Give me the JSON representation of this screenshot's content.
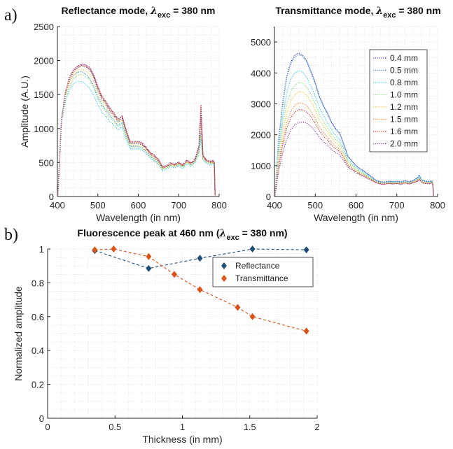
{
  "figure_labels": {
    "panel_a": "a)",
    "panel_b": "b)"
  },
  "chart_data": [
    {
      "type": "line",
      "title": {
        "prefix": "Reflectance mode, ",
        "lambda": "λ",
        "sub": "exc",
        "suffix": " = 380 nm"
      },
      "xlabel": "Wavelength (in nm)",
      "ylabel": "Amplitude (A.U.)",
      "xlim": [
        400,
        800
      ],
      "ylim": [
        0,
        2500
      ],
      "xticks": [
        400,
        500,
        600,
        700,
        800
      ],
      "yticks": [
        0,
        500,
        1000,
        1500,
        2000,
        2500
      ],
      "grid": true,
      "line_style": "dotted",
      "x": [
        401,
        410,
        420,
        430,
        440,
        450,
        460,
        470,
        480,
        490,
        500,
        510,
        520,
        530,
        540,
        550,
        560,
        570,
        580,
        590,
        600,
        610,
        620,
        630,
        640,
        650,
        660,
        670,
        680,
        690,
        700,
        710,
        720,
        730,
        740,
        750,
        755,
        760,
        765,
        770,
        780,
        785,
        788,
        790
      ],
      "series": [
        {
          "name": "0.4 mm",
          "color": "#3f3fb0",
          "values": [
            0,
            1140,
            1530,
            1740,
            1850,
            1900,
            1930,
            1910,
            1870,
            1750,
            1570,
            1440,
            1360,
            1260,
            1190,
            1100,
            1150,
            950,
            780,
            780,
            780,
            760,
            700,
            620,
            580,
            520,
            420,
            440,
            480,
            460,
            490,
            450,
            520,
            480,
            530,
            730,
            1310,
            600,
            550,
            520,
            500,
            520,
            480,
            20
          ]
        },
        {
          "name": "0.5 mm",
          "color": "#3a8fe0",
          "values": [
            0,
            1130,
            1500,
            1690,
            1780,
            1830,
            1840,
            1800,
            1740,
            1620,
            1470,
            1350,
            1280,
            1190,
            1130,
            1050,
            1090,
            900,
            740,
            740,
            740,
            720,
            660,
            590,
            550,
            500,
            400,
            420,
            460,
            440,
            470,
            430,
            500,
            460,
            510,
            670,
            950,
            570,
            530,
            500,
            480,
            500,
            460,
            20
          ]
        },
        {
          "name": "0.8 mm",
          "color": "#36c8f0",
          "values": [
            0,
            1060,
            1400,
            1570,
            1660,
            1690,
            1690,
            1650,
            1590,
            1480,
            1350,
            1240,
            1180,
            1100,
            1050,
            980,
            1020,
            840,
            700,
            700,
            700,
            680,
            630,
            560,
            520,
            470,
            380,
            400,
            440,
            420,
            450,
            410,
            480,
            440,
            490,
            630,
            850,
            540,
            500,
            480,
            460,
            480,
            440,
            20
          ]
        },
        {
          "name": "1.0 mm",
          "color": "#7ee07e",
          "values": [
            0,
            1090,
            1450,
            1630,
            1730,
            1780,
            1800,
            1770,
            1710,
            1590,
            1440,
            1320,
            1250,
            1160,
            1100,
            1030,
            1070,
            880,
            730,
            730,
            720,
            700,
            650,
            580,
            540,
            490,
            400,
            420,
            460,
            440,
            470,
            430,
            500,
            460,
            510,
            650,
            900,
            560,
            520,
            500,
            480,
            500,
            460,
            20
          ]
        },
        {
          "name": "1.2 mm",
          "color": "#ecc832",
          "values": [
            0,
            1110,
            1480,
            1680,
            1790,
            1850,
            1870,
            1850,
            1800,
            1690,
            1530,
            1400,
            1330,
            1230,
            1170,
            1090,
            1130,
            930,
            760,
            760,
            760,
            740,
            680,
            610,
            570,
            510,
            410,
            430,
            470,
            450,
            480,
            440,
            510,
            470,
            520,
            690,
            1050,
            580,
            540,
            510,
            490,
            510,
            470,
            20
          ]
        },
        {
          "name": "1.5 mm",
          "color": "#f08c32",
          "values": [
            0,
            1130,
            1510,
            1710,
            1830,
            1890,
            1920,
            1910,
            1870,
            1760,
            1590,
            1450,
            1380,
            1280,
            1210,
            1120,
            1170,
            960,
            790,
            790,
            790,
            770,
            700,
            630,
            590,
            530,
            420,
            440,
            480,
            460,
            490,
            450,
            520,
            480,
            530,
            710,
            1180,
            590,
            550,
            520,
            500,
            520,
            480,
            20
          ]
        },
        {
          "name": "1.6 mm",
          "color": "#d23232",
          "values": [
            0,
            1140,
            1530,
            1740,
            1860,
            1910,
            1940,
            1930,
            1890,
            1780,
            1610,
            1470,
            1390,
            1290,
            1220,
            1130,
            1180,
            970,
            800,
            800,
            800,
            780,
            710,
            640,
            600,
            540,
            430,
            450,
            490,
            470,
            500,
            460,
            530,
            490,
            540,
            730,
            1350,
            600,
            560,
            530,
            510,
            530,
            490,
            20
          ]
        },
        {
          "name": "2.0 mm",
          "color": "#8c3c96",
          "values": [
            0,
            1150,
            1540,
            1760,
            1870,
            1920,
            1950,
            1940,
            1900,
            1790,
            1620,
            1480,
            1400,
            1300,
            1230,
            1140,
            1190,
            980,
            810,
            810,
            810,
            790,
            720,
            650,
            610,
            550,
            440,
            460,
            500,
            480,
            510,
            470,
            540,
            500,
            550,
            750,
            1200,
            610,
            570,
            540,
            520,
            540,
            500,
            20
          ]
        }
      ]
    },
    {
      "type": "line",
      "title": {
        "prefix": "Transmittance mode, ",
        "lambda": "λ",
        "sub": "exc",
        "suffix": " = 380 nm"
      },
      "xlabel": "Wavelength (in nm)",
      "ylabel": "",
      "xlim": [
        400,
        800
      ],
      "ylim": [
        0,
        5500
      ],
      "xticks": [
        400,
        500,
        600,
        700,
        800
      ],
      "yticks": [
        0,
        1000,
        2000,
        3000,
        4000,
        5000
      ],
      "grid": true,
      "line_style": "dotted",
      "legend_position": "top-right",
      "x": [
        401,
        410,
        420,
        430,
        440,
        450,
        460,
        470,
        480,
        490,
        500,
        510,
        520,
        530,
        540,
        550,
        560,
        570,
        580,
        590,
        600,
        610,
        620,
        630,
        640,
        650,
        660,
        670,
        680,
        690,
        700,
        710,
        720,
        730,
        740,
        750,
        755,
        760,
        765,
        770,
        780,
        785,
        788,
        790
      ],
      "series": [
        {
          "name": "0.4 mm",
          "color": "#3f3fb0",
          "values": [
            0,
            1800,
            3000,
            3900,
            4350,
            4580,
            4650,
            4560,
            4370,
            4040,
            3680,
            3250,
            2950,
            2700,
            2400,
            2200,
            2050,
            1700,
            1300,
            1150,
            1000,
            900,
            820,
            720,
            620,
            520,
            480,
            470,
            500,
            480,
            500,
            470,
            520,
            480,
            520,
            600,
            700,
            560,
            520,
            500,
            490,
            510,
            480,
            20
          ]
        },
        {
          "name": "0.5 mm",
          "color": "#3a8fe0",
          "values": [
            0,
            1750,
            2950,
            3850,
            4300,
            4520,
            4600,
            4520,
            4330,
            4000,
            3650,
            3220,
            2920,
            2680,
            2380,
            2180,
            2030,
            1680,
            1290,
            1140,
            990,
            890,
            810,
            710,
            610,
            510,
            470,
            460,
            490,
            470,
            490,
            460,
            510,
            470,
            510,
            590,
            680,
            550,
            510,
            490,
            480,
            500,
            470,
            20
          ]
        },
        {
          "name": "0.8 mm",
          "color": "#36c8f0",
          "values": [
            0,
            1500,
            2550,
            3350,
            3800,
            4000,
            4080,
            4010,
            3840,
            3560,
            3250,
            2880,
            2620,
            2400,
            2150,
            1980,
            1840,
            1540,
            1200,
            1060,
            930,
            840,
            760,
            670,
            580,
            490,
            450,
            440,
            470,
            450,
            470,
            440,
            490,
            450,
            490,
            560,
            640,
            530,
            490,
            470,
            460,
            480,
            450,
            20
          ]
        },
        {
          "name": "1.0 mm",
          "color": "#7ee07e",
          "values": [
            0,
            1350,
            2300,
            3000,
            3400,
            3600,
            3700,
            3660,
            3520,
            3280,
            3000,
            2670,
            2430,
            2240,
            2010,
            1850,
            1730,
            1450,
            1140,
            1010,
            890,
            800,
            730,
            640,
            560,
            480,
            440,
            430,
            460,
            440,
            460,
            430,
            480,
            440,
            480,
            540,
            610,
            510,
            470,
            460,
            450,
            470,
            440,
            20
          ]
        },
        {
          "name": "1.2 mm",
          "color": "#ecc832",
          "values": [
            0,
            1200,
            2050,
            2700,
            3100,
            3300,
            3400,
            3380,
            3260,
            3060,
            2800,
            2500,
            2280,
            2110,
            1900,
            1750,
            1640,
            1380,
            1090,
            970,
            860,
            780,
            710,
            620,
            550,
            470,
            430,
            420,
            450,
            430,
            450,
            420,
            470,
            430,
            470,
            530,
            590,
            500,
            460,
            450,
            440,
            460,
            430,
            20
          ]
        },
        {
          "name": "1.5 mm",
          "color": "#f08c32",
          "values": [
            0,
            1050,
            1800,
            2400,
            2750,
            2950,
            3030,
            3020,
            2920,
            2750,
            2530,
            2270,
            2080,
            1930,
            1750,
            1620,
            1520,
            1290,
            1030,
            920,
            820,
            740,
            680,
            600,
            530,
            460,
            420,
            410,
            440,
            420,
            440,
            410,
            460,
            420,
            460,
            510,
            570,
            490,
            450,
            440,
            430,
            450,
            420,
            20
          ]
        },
        {
          "name": "1.6 mm",
          "color": "#d23232",
          "values": [
            0,
            950,
            1650,
            2200,
            2550,
            2730,
            2810,
            2800,
            2720,
            2570,
            2370,
            2140,
            1960,
            1830,
            1660,
            1540,
            1450,
            1240,
            1000,
            900,
            800,
            720,
            660,
            590,
            520,
            450,
            410,
            400,
            430,
            410,
            430,
            400,
            450,
            410,
            450,
            500,
            560,
            480,
            440,
            430,
            420,
            440,
            410,
            20
          ]
        },
        {
          "name": "2.0 mm",
          "color": "#8c3c96",
          "values": [
            0,
            800,
            1400,
            1850,
            2150,
            2320,
            2400,
            2410,
            2370,
            2260,
            2110,
            1920,
            1770,
            1660,
            1520,
            1420,
            1340,
            1160,
            950,
            860,
            770,
            700,
            640,
            570,
            510,
            440,
            400,
            390,
            420,
            400,
            420,
            390,
            440,
            400,
            440,
            490,
            540,
            470,
            430,
            420,
            410,
            430,
            400,
            20
          ]
        }
      ]
    },
    {
      "type": "line",
      "title": {
        "prefix": "Fluorescence peak at 460 nm (",
        "lambda": "λ",
        "sub": "exc",
        "suffix": " = 380 nm)"
      },
      "xlabel": "Thickness (in mm)",
      "ylabel": "Normalized amplitude",
      "xlim": [
        0,
        2
      ],
      "ylim": [
        0,
        1
      ],
      "xticks": [
        0,
        0.5,
        1,
        1.5,
        2
      ],
      "xticklabels": [
        "0",
        "0.5",
        "1",
        "1.5",
        "2"
      ],
      "yticks": [
        0,
        0.2,
        0.4,
        0.6,
        0.8,
        1
      ],
      "yticklabels": [
        "0",
        "0.2",
        "0.4",
        "0.6",
        "0.8",
        "1"
      ],
      "grid": true,
      "marker": "diamond",
      "line_style": "dashed",
      "legend_position": "top-right",
      "series": [
        {
          "name": "Reflectance",
          "color": "#1f4e79",
          "x": [
            0.35,
            0.75,
            1.13,
            1.52,
            1.92
          ],
          "values": [
            0.99,
            0.885,
            0.945,
            1.0,
            0.995
          ]
        },
        {
          "name": "Transmittance",
          "color": "#d95319",
          "x": [
            0.35,
            0.49,
            0.75,
            0.94,
            1.13,
            1.41,
            1.52,
            1.92
          ],
          "values": [
            0.995,
            1.0,
            0.955,
            0.85,
            0.76,
            0.655,
            0.6,
            0.515
          ]
        }
      ]
    }
  ]
}
